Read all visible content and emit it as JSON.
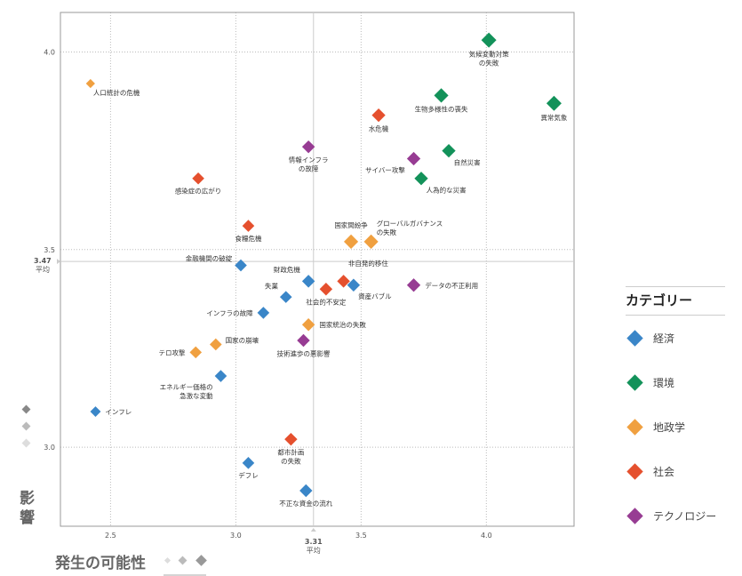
{
  "chart_data": {
    "type": "scatter",
    "xlabel": "発生の可能性",
    "ylabel": "影響",
    "xlim": [
      2.3,
      4.35
    ],
    "ylim": [
      2.8,
      4.1
    ],
    "x_ticks": [
      "2.5",
      "3.0",
      "3.5",
      "4.0"
    ],
    "y_ticks": [
      "3.0",
      "3.5",
      "4.0"
    ],
    "x_mean": {
      "value": 3.31,
      "label": "3.31",
      "sublabel": "平均"
    },
    "y_mean": {
      "value": 3.47,
      "label": "3.47",
      "sublabel": "平均"
    },
    "grid": true,
    "legend_position": "right",
    "legend": {
      "title": "カテゴリー",
      "items": [
        {
          "key": "economy",
          "label": "経済",
          "color": "#3a86c8"
        },
        {
          "key": "environment",
          "label": "環境",
          "color": "#13925a"
        },
        {
          "key": "geopolitics",
          "label": "地政学",
          "color": "#f0a040"
        },
        {
          "key": "society",
          "label": "社会",
          "color": "#e5502e"
        },
        {
          "key": "technology",
          "label": "テクノロジー",
          "color": "#973c93"
        }
      ]
    },
    "points": [
      {
        "label": "気候変動対策の失敗",
        "lines": [
          "気候変動対策",
          "の失敗"
        ],
        "x": 4.01,
        "y": 4.03,
        "category": "environment",
        "size": 1.0,
        "anchor": "below"
      },
      {
        "label": "異常気象",
        "lines": [
          "異常気象"
        ],
        "x": 4.27,
        "y": 3.87,
        "category": "environment",
        "size": 1.0,
        "anchor": "below"
      },
      {
        "label": "生物多様性の喪失",
        "lines": [
          "生物多様性の喪失"
        ],
        "x": 3.82,
        "y": 3.89,
        "category": "environment",
        "size": 0.95,
        "anchor": "below"
      },
      {
        "label": "水危機",
        "lines": [
          "水危機"
        ],
        "x": 3.57,
        "y": 3.84,
        "category": "society",
        "size": 0.9,
        "anchor": "below"
      },
      {
        "label": "自然災害",
        "lines": [
          "自然災害"
        ],
        "x": 3.85,
        "y": 3.75,
        "category": "environment",
        "size": 0.9,
        "anchor": "below-right"
      },
      {
        "label": "サイバー攻撃",
        "lines": [
          "サイバー攻撃"
        ],
        "x": 3.71,
        "y": 3.73,
        "category": "technology",
        "size": 0.9,
        "anchor": "below-left"
      },
      {
        "label": "人為的な災害",
        "lines": [
          "人為的な災害"
        ],
        "x": 3.74,
        "y": 3.68,
        "category": "environment",
        "size": 0.9,
        "anchor": "below-right"
      },
      {
        "label": "情報インフラの故障",
        "lines": [
          "情報インフラ",
          "の故障"
        ],
        "x": 3.29,
        "y": 3.76,
        "category": "technology",
        "size": 0.85,
        "anchor": "below"
      },
      {
        "label": "人口統計の危機",
        "lines": [
          "人口統計の危機"
        ],
        "x": 2.42,
        "y": 3.92,
        "category": "geopolitics",
        "size": 0.6,
        "anchor": "below-right"
      },
      {
        "label": "感染症の広がり",
        "lines": [
          "感染症の広がり"
        ],
        "x": 2.85,
        "y": 3.68,
        "category": "society",
        "size": 0.8,
        "anchor": "below"
      },
      {
        "label": "食糧危機",
        "lines": [
          "食糧危機"
        ],
        "x": 3.05,
        "y": 3.56,
        "category": "society",
        "size": 0.8,
        "anchor": "below"
      },
      {
        "label": "国家間紛争",
        "lines": [
          "国家間紛争"
        ],
        "x": 3.46,
        "y": 3.52,
        "category": "geopolitics",
        "size": 0.95,
        "anchor": "above"
      },
      {
        "label": "グローバルガバナンスの失敗",
        "lines": [
          "グローバルガバナンス",
          "の失敗"
        ],
        "x": 3.54,
        "y": 3.52,
        "category": "geopolitics",
        "size": 0.95,
        "anchor": "above-right"
      },
      {
        "label": "金融機関の破綻",
        "lines": [
          "金融機関の破綻"
        ],
        "x": 3.02,
        "y": 3.46,
        "category": "economy",
        "size": 0.8,
        "anchor": "left-up"
      },
      {
        "label": "財政危機",
        "lines": [
          "財政危機"
        ],
        "x": 3.29,
        "y": 3.42,
        "category": "economy",
        "size": 0.85,
        "anchor": "above-left"
      },
      {
        "label": "非自発的移住",
        "lines": [
          "非自発的移住"
        ],
        "x": 3.43,
        "y": 3.42,
        "category": "society",
        "size": 0.85,
        "anchor": "above-right"
      },
      {
        "label": "社会的不安定",
        "lines": [
          "社会的不安定"
        ],
        "x": 3.36,
        "y": 3.4,
        "category": "society",
        "size": 0.85,
        "anchor": "below"
      },
      {
        "label": "資産バブル",
        "lines": [
          "資産バブル"
        ],
        "x": 3.47,
        "y": 3.41,
        "category": "economy",
        "size": 0.85,
        "anchor": "below-right"
      },
      {
        "label": "データの不正利用",
        "lines": [
          "データの不正利用"
        ],
        "x": 3.71,
        "y": 3.41,
        "category": "technology",
        "size": 0.9,
        "anchor": "right"
      },
      {
        "label": "失業",
        "lines": [
          "失業"
        ],
        "x": 3.2,
        "y": 3.38,
        "category": "economy",
        "size": 0.8,
        "anchor": "above-left"
      },
      {
        "label": "インフラの故障",
        "lines": [
          "インフラの故障"
        ],
        "x": 3.11,
        "y": 3.34,
        "category": "economy",
        "size": 0.8,
        "anchor": "left"
      },
      {
        "label": "国家統治の失敗",
        "lines": [
          "国家統治の失敗"
        ],
        "x": 3.29,
        "y": 3.31,
        "category": "geopolitics",
        "size": 0.85,
        "anchor": "right"
      },
      {
        "label": "国家の崩壊",
        "lines": [
          "国家の崩壊"
        ],
        "x": 2.92,
        "y": 3.26,
        "category": "geopolitics",
        "size": 0.8,
        "anchor": "right-up"
      },
      {
        "label": "テロ攻撃",
        "lines": [
          "テロ攻撃"
        ],
        "x": 2.84,
        "y": 3.24,
        "category": "geopolitics",
        "size": 0.8,
        "anchor": "left"
      },
      {
        "label": "技術進歩の悪影響",
        "lines": [
          "技術進歩の悪影響"
        ],
        "x": 3.27,
        "y": 3.27,
        "category": "technology",
        "size": 0.85,
        "anchor": "below"
      },
      {
        "label": "エネルギー価格の急激な変動",
        "lines": [
          "エネルギー価格の",
          "急激な変動"
        ],
        "x": 2.94,
        "y": 3.18,
        "category": "economy",
        "size": 0.8,
        "anchor": "below-left"
      },
      {
        "label": "インフレ",
        "lines": [
          "インフレ"
        ],
        "x": 2.44,
        "y": 3.09,
        "category": "economy",
        "size": 0.7,
        "anchor": "right"
      },
      {
        "label": "都市計画の失敗",
        "lines": [
          "都市計画",
          "の失敗"
        ],
        "x": 3.22,
        "y": 3.02,
        "category": "society",
        "size": 0.85,
        "anchor": "below"
      },
      {
        "label": "デフレ",
        "lines": [
          "デフレ"
        ],
        "x": 3.05,
        "y": 2.96,
        "category": "economy",
        "size": 0.8,
        "anchor": "below"
      },
      {
        "label": "不正な資金の流れ",
        "lines": [
          "不正な資金の流れ"
        ],
        "x": 3.28,
        "y": 2.89,
        "category": "economy",
        "size": 0.85,
        "anchor": "below"
      }
    ]
  }
}
